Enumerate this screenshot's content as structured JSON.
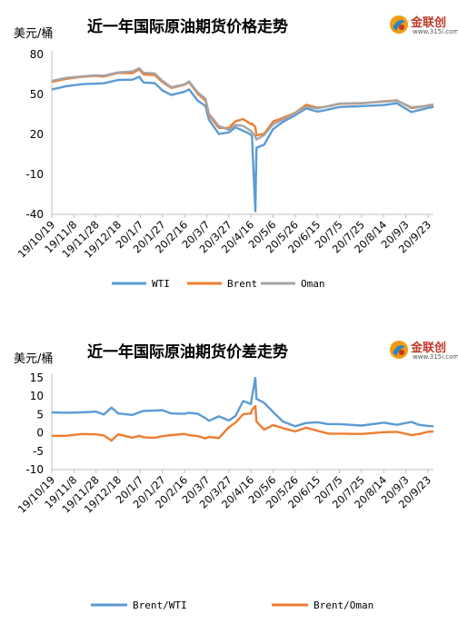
{
  "charts": [
    {
      "title": "近一年国际原油期货价格走势",
      "unit": "美元/桶",
      "logo": {
        "name": "金联创",
        "sub": "www.315i.com"
      }
    },
    {
      "title": "近一年国际原油期货价差走势",
      "unit": "美元/桶",
      "logo": {
        "name": "金联创",
        "sub": "www.315i.com"
      }
    }
  ],
  "chart_data": [
    {
      "type": "line",
      "title": "近一年国际原油期货价格走势",
      "ylabel": "美元/桶",
      "ylim": [
        -40,
        80
      ],
      "yticks": [
        80,
        50,
        20,
        -10,
        -40
      ],
      "x_tick_labels": [
        "19/10/19",
        "19/11/8",
        "19/11/28",
        "19/12/18",
        "20/1/7",
        "20/1/27",
        "20/2/16",
        "20/3/7",
        "20/3/27",
        "20/4/16",
        "20/5/6",
        "20/5/26",
        "20/6/15",
        "20/7/5",
        "20/7/25",
        "20/8/14",
        "20/9/3",
        "20/9/23"
      ],
      "x_range": [
        "2019-10-19",
        "2020-09-28"
      ],
      "legend_position": "bottom",
      "grid": false,
      "series": [
        {
          "name": "WTI",
          "color": "#5b9bd5",
          "points": [
            [
              "2019-10-19",
              53.8
            ],
            [
              "2019-11-01",
              56.2
            ],
            [
              "2019-11-15",
              57.7
            ],
            [
              "2019-11-28",
              58.1
            ],
            [
              "2019-12-05",
              58.4
            ],
            [
              "2019-12-18",
              60.9
            ],
            [
              "2019-12-31",
              61.1
            ],
            [
              "2020-01-06",
              63.3
            ],
            [
              "2020-01-10",
              59.0
            ],
            [
              "2020-01-20",
              58.5
            ],
            [
              "2020-01-27",
              53.1
            ],
            [
              "2020-02-04",
              49.6
            ],
            [
              "2020-02-16",
              52.1
            ],
            [
              "2020-02-20",
              53.8
            ],
            [
              "2020-02-28",
              45.3
            ],
            [
              "2020-03-06",
              41.3
            ],
            [
              "2020-03-09",
              31.1
            ],
            [
              "2020-03-18",
              20.4
            ],
            [
              "2020-03-27",
              21.5
            ],
            [
              "2020-04-02",
              25.3
            ],
            [
              "2020-04-09",
              22.8
            ],
            [
              "2020-04-16",
              19.9
            ],
            [
              "2020-04-17",
              18.3
            ],
            [
              "2020-04-20",
              -37.6
            ],
            [
              "2020-04-21",
              10.0
            ],
            [
              "2020-04-28",
              12.3
            ],
            [
              "2020-05-06",
              24.0
            ],
            [
              "2020-05-15",
              29.4
            ],
            [
              "2020-05-26",
              34.4
            ],
            [
              "2020-06-05",
              39.6
            ],
            [
              "2020-06-15",
              37.1
            ],
            [
              "2020-06-25",
              38.7
            ],
            [
              "2020-07-05",
              40.6
            ],
            [
              "2020-07-25",
              41.3
            ],
            [
              "2020-08-14",
              42.0
            ],
            [
              "2020-08-26",
              43.4
            ],
            [
              "2020-09-08",
              36.8
            ],
            [
              "2020-09-15",
              38.3
            ],
            [
              "2020-09-23",
              39.9
            ],
            [
              "2020-09-28",
              40.6
            ]
          ]
        },
        {
          "name": "Brent",
          "color": "#ed7d31",
          "points": [
            [
              "2019-10-19",
              59.4
            ],
            [
              "2019-11-01",
              61.7
            ],
            [
              "2019-11-15",
              63.3
            ],
            [
              "2019-11-28",
              63.9
            ],
            [
              "2019-12-05",
              63.4
            ],
            [
              "2019-12-18",
              66.2
            ],
            [
              "2019-12-31",
              66.0
            ],
            [
              "2020-01-06",
              68.9
            ],
            [
              "2020-01-10",
              65.0
            ],
            [
              "2020-01-20",
              64.6
            ],
            [
              "2020-01-27",
              59.3
            ],
            [
              "2020-02-04",
              54.9
            ],
            [
              "2020-02-16",
              57.3
            ],
            [
              "2020-02-20",
              59.3
            ],
            [
              "2020-02-28",
              50.5
            ],
            [
              "2020-03-06",
              45.3
            ],
            [
              "2020-03-09",
              34.4
            ],
            [
              "2020-03-18",
              24.9
            ],
            [
              "2020-03-27",
              24.9
            ],
            [
              "2020-04-02",
              29.9
            ],
            [
              "2020-04-09",
              31.5
            ],
            [
              "2020-04-16",
              27.8
            ],
            [
              "2020-04-17",
              28.1
            ],
            [
              "2020-04-20",
              25.6
            ],
            [
              "2020-04-21",
              19.3
            ],
            [
              "2020-04-28",
              20.5
            ],
            [
              "2020-05-06",
              29.7
            ],
            [
              "2020-05-15",
              32.5
            ],
            [
              "2020-05-26",
              36.2
            ],
            [
              "2020-06-05",
              42.3
            ],
            [
              "2020-06-15",
              40.0
            ],
            [
              "2020-06-25",
              41.1
            ],
            [
              "2020-07-05",
              43.0
            ],
            [
              "2020-07-25",
              43.3
            ],
            [
              "2020-08-14",
              44.8
            ],
            [
              "2020-08-26",
              45.6
            ],
            [
              "2020-09-08",
              39.8
            ],
            [
              "2020-09-15",
              40.5
            ],
            [
              "2020-09-23",
              41.8
            ],
            [
              "2020-09-28",
              42.4
            ]
          ]
        },
        {
          "name": "Oman",
          "color": "#a5a5a5",
          "points": [
            [
              "2019-10-19",
              60.2
            ],
            [
              "2019-11-01",
              62.5
            ],
            [
              "2019-11-15",
              63.6
            ],
            [
              "2019-11-28",
              64.3
            ],
            [
              "2019-12-05",
              64.1
            ],
            [
              "2019-12-18",
              66.6
            ],
            [
              "2019-12-31",
              67.3
            ],
            [
              "2020-01-06",
              69.7
            ],
            [
              "2020-01-10",
              66.2
            ],
            [
              "2020-01-20",
              65.9
            ],
            [
              "2020-01-27",
              60.2
            ],
            [
              "2020-02-04",
              55.5
            ],
            [
              "2020-02-16",
              57.6
            ],
            [
              "2020-02-20",
              59.9
            ],
            [
              "2020-02-28",
              51.4
            ],
            [
              "2020-03-06",
              46.8
            ],
            [
              "2020-03-09",
              35.5
            ],
            [
              "2020-03-18",
              26.3
            ],
            [
              "2020-03-27",
              23.4
            ],
            [
              "2020-04-02",
              27.1
            ],
            [
              "2020-04-09",
              26.4
            ],
            [
              "2020-04-16",
              22.5
            ],
            [
              "2020-04-17",
              21.8
            ],
            [
              "2020-04-20",
              18.3
            ],
            [
              "2020-04-21",
              16.2
            ],
            [
              "2020-04-28",
              19.6
            ],
            [
              "2020-05-06",
              27.6
            ],
            [
              "2020-05-15",
              31.2
            ],
            [
              "2020-05-26",
              35.8
            ],
            [
              "2020-06-05",
              40.9
            ],
            [
              "2020-06-15",
              39.4
            ],
            [
              "2020-06-25",
              41.3
            ],
            [
              "2020-07-05",
              43.2
            ],
            [
              "2020-07-25",
              43.6
            ],
            [
              "2020-08-14",
              44.6
            ],
            [
              "2020-08-26",
              45.3
            ],
            [
              "2020-09-08",
              40.4
            ],
            [
              "2020-09-15",
              40.8
            ],
            [
              "2020-09-23",
              41.5
            ],
            [
              "2020-09-28",
              42.0
            ]
          ]
        }
      ]
    },
    {
      "type": "line",
      "title": "近一年国际原油期货价差走势",
      "ylabel": "美元/桶",
      "ylim": [
        -10,
        15
      ],
      "yticks": [
        15,
        10,
        5,
        0,
        -5,
        -10
      ],
      "x_tick_labels": [
        "19/10/19",
        "19/11/8",
        "19/11/28",
        "19/12/18",
        "20/1/7",
        "20/1/27",
        "20/2/16",
        "20/3/7",
        "20/3/27",
        "20/4/16",
        "20/5/6",
        "20/5/26",
        "20/6/15",
        "20/7/5",
        "20/7/25",
        "20/8/14",
        "20/9/3",
        "20/9/23"
      ],
      "x_range": [
        "2019-10-19",
        "2020-09-28"
      ],
      "legend_position": "bottom",
      "grid": false,
      "series": [
        {
          "name": "Brent/WTI",
          "color": "#5b9bd5",
          "points": [
            [
              "2019-10-19",
              5.6
            ],
            [
              "2019-11-01",
              5.5
            ],
            [
              "2019-11-15",
              5.6
            ],
            [
              "2019-11-28",
              5.8
            ],
            [
              "2019-12-05",
              5.0
            ],
            [
              "2019-12-12",
              6.9
            ],
            [
              "2019-12-18",
              5.3
            ],
            [
              "2019-12-31",
              4.9
            ],
            [
              "2020-01-06",
              5.6
            ],
            [
              "2020-01-10",
              6.0
            ],
            [
              "2020-01-20",
              6.1
            ],
            [
              "2020-01-27",
              6.2
            ],
            [
              "2020-02-04",
              5.3
            ],
            [
              "2020-02-16",
              5.2
            ],
            [
              "2020-02-20",
              5.5
            ],
            [
              "2020-02-28",
              5.2
            ],
            [
              "2020-03-06",
              4.0
            ],
            [
              "2020-03-09",
              3.3
            ],
            [
              "2020-03-18",
              4.5
            ],
            [
              "2020-03-27",
              3.4
            ],
            [
              "2020-04-02",
              4.6
            ],
            [
              "2020-04-09",
              8.7
            ],
            [
              "2020-04-16",
              7.9
            ],
            [
              "2020-04-17",
              9.8
            ],
            [
              "2020-04-20",
              15.0
            ],
            [
              "2020-04-21",
              9.3
            ],
            [
              "2020-04-28",
              8.2
            ],
            [
              "2020-05-06",
              5.7
            ],
            [
              "2020-05-15",
              3.1
            ],
            [
              "2020-05-26",
              1.8
            ],
            [
              "2020-06-05",
              2.7
            ],
            [
              "2020-06-15",
              2.9
            ],
            [
              "2020-06-25",
              2.4
            ],
            [
              "2020-07-05",
              2.4
            ],
            [
              "2020-07-25",
              2.0
            ],
            [
              "2020-08-14",
              2.8
            ],
            [
              "2020-08-26",
              2.2
            ],
            [
              "2020-09-08",
              3.0
            ],
            [
              "2020-09-15",
              2.2
            ],
            [
              "2020-09-23",
              1.9
            ],
            [
              "2020-09-28",
              1.8
            ]
          ]
        },
        {
          "name": "Brent/Oman",
          "color": "#ed7d31",
          "points": [
            [
              "2019-10-19",
              -0.8
            ],
            [
              "2019-11-01",
              -0.8
            ],
            [
              "2019-11-15",
              -0.3
            ],
            [
              "2019-11-28",
              -0.4
            ],
            [
              "2019-12-05",
              -0.7
            ],
            [
              "2019-12-12",
              -2.1
            ],
            [
              "2019-12-18",
              -0.4
            ],
            [
              "2019-12-31",
              -1.3
            ],
            [
              "2020-01-06",
              -0.8
            ],
            [
              "2020-01-10",
              -1.2
            ],
            [
              "2020-01-20",
              -1.3
            ],
            [
              "2020-01-27",
              -0.9
            ],
            [
              "2020-02-04",
              -0.6
            ],
            [
              "2020-02-16",
              -0.3
            ],
            [
              "2020-02-20",
              -0.6
            ],
            [
              "2020-02-28",
              -0.9
            ],
            [
              "2020-03-06",
              -1.5
            ],
            [
              "2020-03-09",
              -1.1
            ],
            [
              "2020-03-18",
              -1.4
            ],
            [
              "2020-03-27",
              1.5
            ],
            [
              "2020-04-02",
              2.8
            ],
            [
              "2020-04-09",
              5.1
            ],
            [
              "2020-04-16",
              5.3
            ],
            [
              "2020-04-17",
              6.3
            ],
            [
              "2020-04-20",
              7.3
            ],
            [
              "2020-04-21",
              3.1
            ],
            [
              "2020-04-28",
              0.9
            ],
            [
              "2020-05-06",
              2.1
            ],
            [
              "2020-05-15",
              1.3
            ],
            [
              "2020-05-26",
              0.4
            ],
            [
              "2020-06-05",
              1.4
            ],
            [
              "2020-06-15",
              0.6
            ],
            [
              "2020-06-25",
              -0.2
            ],
            [
              "2020-07-05",
              -0.2
            ],
            [
              "2020-07-25",
              -0.3
            ],
            [
              "2020-08-14",
              0.2
            ],
            [
              "2020-08-26",
              0.3
            ],
            [
              "2020-09-08",
              -0.6
            ],
            [
              "2020-09-15",
              -0.3
            ],
            [
              "2020-09-23",
              0.3
            ],
            [
              "2020-09-28",
              0.4
            ]
          ]
        }
      ]
    }
  ]
}
